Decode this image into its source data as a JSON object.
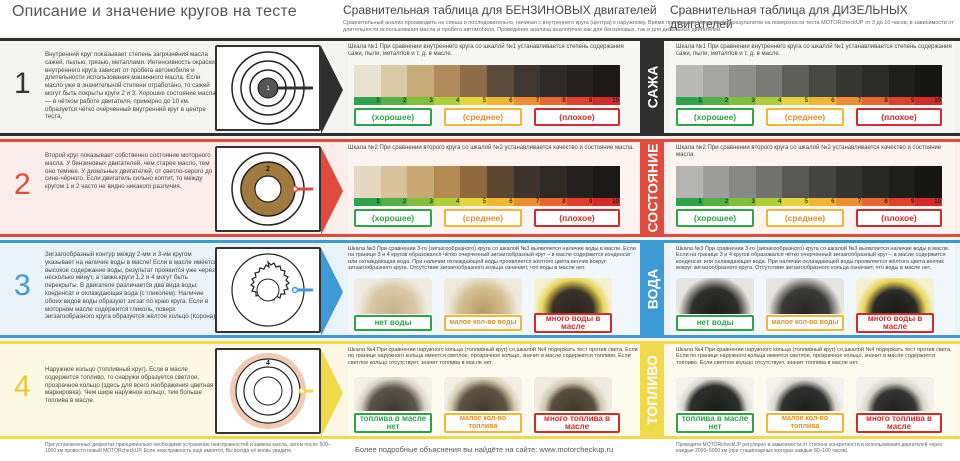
{
  "header": {
    "title_left": "Описание и значение кругов на тесте",
    "title_mid": "Сравнительная таблица для  БЕНЗИНОВЫХ двигателей",
    "title_right": "Сравнительная таблица для  ДИЗЕЛЬНЫХ двигателей",
    "desc": "Сравнительный анализ производить не спеша и последовательно, начиная с внутреннего круга (центра) к наружному. Время проявления (созревания) результатов на поверхности теста MOTORcheckUP от 3 до 10 часов, в зависимости от длительности использования масла и пробега автомобиля. Проведение анализа аналогично как для бензиновых, так и для дизельных двигателей."
  },
  "rows": [
    {
      "num": "1",
      "color": "#2f2f2f",
      "vlabel": "САЖА",
      "desc": "Внутренний круг показывает степень загрязнения масла сажей, пылью, грязью, металлами. Интенсивность окраски внутреннего круга зависит от пробега автомобиля и длительности использования машинного масла. Если масло уже в значительной степени отработано, то сажей могут быть покрыты круги 2 и 3. Хорошее состояние масла — в чётком работе двигателя, примерно до 10 км. образуется чётко очерченный внутренний круг в центре теста.",
      "petrol_text": "Шкала №1  При сравнении внутреннего круга со шкалой №1 устанавливается степень содержания сажи, пыли, металлов и т. д. в масле.",
      "diesel_text": "Шкала №1  При сравнении внутреннего круга со шкалой №1 устанавливается степень содержания сажи, пыли, металлов и т. д. в масле.",
      "scale": [
        "1",
        "2",
        "3",
        "4",
        "5",
        "6",
        "7",
        "8",
        "9",
        "10"
      ],
      "verdicts": [
        "(хорошее)",
        "(среднее)",
        "(плохое)"
      ]
    },
    {
      "num": "2",
      "color": "#e24a3b",
      "vlabel": "СОСТОЯНИЕ",
      "desc": "Второй круг показывает собственно состояние моторного масла. У бензиновых двигателей, чем старее масло, тем оно темнее. У дизельных двигателей, от светло-серого до сине-чёрного. Если двигатель сильно коптит, то между кругом 1 и 2 часто не видно никакого различия.",
      "petrol_text": "Шкала №2  При сравнении второго круга со шкалой №2 устанавливается качество и состояние масла.",
      "diesel_text": "Шкала №2  При сравнении второго круга со шкалой №2 устанавливается качество и состояние масла.",
      "scale": [
        "1",
        "2",
        "3",
        "4",
        "5",
        "6",
        "7",
        "8",
        "9",
        "10"
      ],
      "verdicts": [
        "(хорошее)",
        "(среднее)",
        "(плохое)"
      ]
    },
    {
      "num": "3",
      "color": "#3d9ad6",
      "vlabel": "ВОДА",
      "desc": "Зигзагообразный контур между 2-мм и 3-им кругом указывает на наличие воды в масле! Если в масле имеется высокое содержание воды, результат проявится уже через несколько минут, а также круги 1,2 и 4 могут быть перекрыты. В двигателе различается два вида воды: конденсат и охлаждающая вода (с гликолем). Наличие обоих видов воды образуют зигзаг по краю круга. Если в моторном масле содержится гликоль, поверх зигзагообразного круга образуется жёлтое кольцо (Корона).",
      "petrol_text": "Шкала №3  При сравнении 3-го (зигзагообразного) круга со шкалой №3 выявляется наличие воды в масле. Если на границе 3 и 4 кругов образовался чётко очерченный зигзагообразный круг – в масле содержится конденсат или охлаждающая вода. При наличии охлаждающей воды проявляется жёлтого цвета венчик вокруг зигзагообразного круга. Отсутствие зигзагообразного кольца означает, что воды в масле нет.",
      "diesel_text": "Шкала №3  При сравнении 3-го (зигзагообразного) круга со шкалой №3 выявляется наличие воды в масле. Если на границе 3 и 4 кругов образовался чётко очерченный зигзагообразный круг – в масле содержится конденсат или охлаждающая вода. При наличии охлаждающей воды проявляется жёлтого цвета венчик вокруг зигзагообразного круга. Отсутствие зигзагообразного кольца означает, что воды в масле нет.",
      "verdicts": [
        "нет воды",
        "малое кол-во воды",
        "много воды в масле"
      ]
    },
    {
      "num": "4",
      "color": "#f2d94a",
      "vlabel": "ТОПЛИВО",
      "desc": "Наружное кольцо (топливный круг). Если в масле содержится топливо, то снаружи образуется светлое, прозрачное кольцо (здесь для всего изображения цветная маркировка). Чем шире наружное кольцо, тем больше топлива в масле.",
      "petrol_text": "Шкала №4  При сравнении наружного кольца (топливный круг) со шкалой №4 подержать тест против света. Если по границе наружного кольца имеется светлое, прозрачное кольцо, значит в масле содержится топливо. Если светлое кольцо отсутствует, значит топлива в масле нет.",
      "diesel_text": "Шкала №4  При сравнении наружного кольца (топливный круг) со шкалой №4 подержать тест против света. Если по границе наружного кольца имеется светлое, прозрачное кольцо, значит в масле содержится топливо. Если светлое кольцо отсутствует, значит топлива в масле нет.",
      "verdicts": [
        "топлива в масле нет",
        "малое кол-во топлива",
        "много топлива в масле"
      ]
    }
  ],
  "footer": {
    "left": "При установленных дефектах принципиально необходимо устранение неисправностей и замена масла, затем после 500–1000 км провести новый MOTORcheckUP. Если неисправность ещё имеется, Вы всегда её вновь увидите.",
    "mid": "Более подробные объяснения вы найдёте на сайте: www.motorcheckup.ru",
    "right": "Проводите MOTORcheckUP регулярно в зависимости от степени конкретности и использования двигателей через каждые 2000–5000 км (при стационарных моторах каждые 80–100 часов)."
  }
}
